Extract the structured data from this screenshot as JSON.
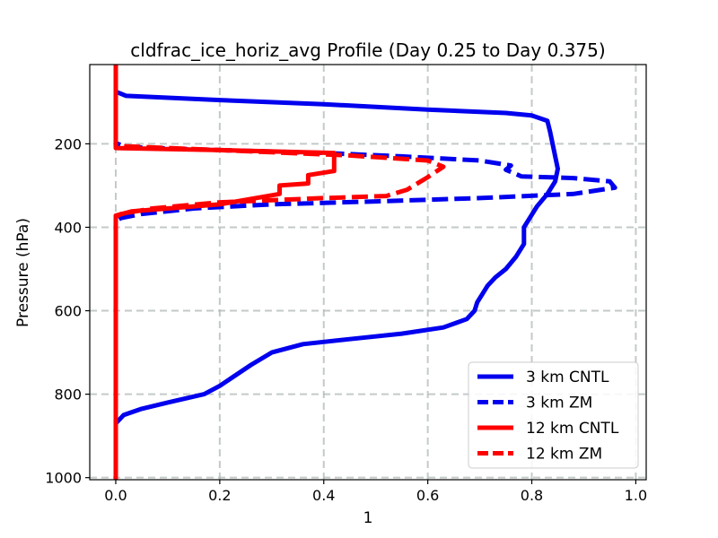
{
  "chart_data": {
    "type": "line",
    "title": "cldfrac_ice_horiz_avg Profile (Day 0.25 to Day 0.375)",
    "xlabel": "1",
    "ylabel": "Pressure (hPa)",
    "xlim": [
      -0.05,
      1.02
    ],
    "ylim": [
      1005,
      10
    ],
    "y_inverted": true,
    "grid": true,
    "legend_position": "lower-right",
    "xticks": [
      0.0,
      0.2,
      0.4,
      0.6,
      0.8,
      1.0
    ],
    "xtick_labels": [
      "0.0",
      "0.2",
      "0.4",
      "0.6",
      "0.8",
      "1.0"
    ],
    "yticks": [
      200,
      400,
      600,
      800,
      1000
    ],
    "ytick_labels": [
      "200",
      "400",
      "600",
      "800",
      "1000"
    ],
    "series": [
      {
        "name": "3 km CNTL",
        "color": "#0000ee",
        "style": "solid",
        "points": [
          [
            0.0,
            10
          ],
          [
            0.0,
            75
          ],
          [
            0.02,
            85
          ],
          [
            0.2,
            95
          ],
          [
            0.4,
            105
          ],
          [
            0.6,
            118
          ],
          [
            0.75,
            126
          ],
          [
            0.8,
            132
          ],
          [
            0.83,
            145
          ],
          [
            0.835,
            170
          ],
          [
            0.84,
            200
          ],
          [
            0.845,
            230
          ],
          [
            0.85,
            260
          ],
          [
            0.845,
            290
          ],
          [
            0.83,
            320
          ],
          [
            0.81,
            350
          ],
          [
            0.795,
            380
          ],
          [
            0.785,
            400
          ],
          [
            0.785,
            440
          ],
          [
            0.77,
            470
          ],
          [
            0.75,
            500
          ],
          [
            0.73,
            520
          ],
          [
            0.715,
            540
          ],
          [
            0.705,
            560
          ],
          [
            0.695,
            580
          ],
          [
            0.69,
            600
          ],
          [
            0.675,
            620
          ],
          [
            0.63,
            640
          ],
          [
            0.55,
            655
          ],
          [
            0.45,
            668
          ],
          [
            0.36,
            680
          ],
          [
            0.3,
            700
          ],
          [
            0.26,
            730
          ],
          [
            0.2,
            780
          ],
          [
            0.17,
            800
          ],
          [
            0.1,
            820
          ],
          [
            0.05,
            835
          ],
          [
            0.015,
            850
          ],
          [
            0.0,
            870
          ],
          [
            0.0,
            1005
          ]
        ]
      },
      {
        "name": "3 km ZM",
        "color": "#0000ee",
        "style": "dashed",
        "points": [
          [
            0.0,
            10
          ],
          [
            0.0,
            198
          ],
          [
            0.02,
            208
          ],
          [
            0.2,
            215
          ],
          [
            0.4,
            222
          ],
          [
            0.55,
            230
          ],
          [
            0.7,
            240
          ],
          [
            0.76,
            252
          ],
          [
            0.75,
            262
          ],
          [
            0.78,
            278
          ],
          [
            0.88,
            282
          ],
          [
            0.95,
            290
          ],
          [
            0.96,
            305
          ],
          [
            0.88,
            320
          ],
          [
            0.7,
            330
          ],
          [
            0.5,
            338
          ],
          [
            0.3,
            345
          ],
          [
            0.15,
            355
          ],
          [
            0.05,
            368
          ],
          [
            0.01,
            378
          ],
          [
            0.0,
            385
          ],
          [
            0.0,
            1005
          ]
        ]
      },
      {
        "name": "12 km CNTL",
        "color": "#ff0000",
        "style": "solid",
        "points": [
          [
            0.0,
            10
          ],
          [
            0.0,
            210
          ],
          [
            0.2,
            215
          ],
          [
            0.42,
            222
          ],
          [
            0.42,
            265
          ],
          [
            0.37,
            275
          ],
          [
            0.37,
            295
          ],
          [
            0.315,
            300
          ],
          [
            0.315,
            320
          ],
          [
            0.2,
            345
          ],
          [
            0.1,
            355
          ],
          [
            0.03,
            362
          ],
          [
            0.0,
            372
          ],
          [
            0.0,
            1005
          ]
        ]
      },
      {
        "name": "12 km ZM",
        "color": "#ff0000",
        "style": "dashed",
        "points": [
          [
            0.0,
            10
          ],
          [
            0.0,
            205
          ],
          [
            0.2,
            215
          ],
          [
            0.45,
            228
          ],
          [
            0.6,
            240
          ],
          [
            0.63,
            255
          ],
          [
            0.6,
            280
          ],
          [
            0.56,
            310
          ],
          [
            0.52,
            325
          ],
          [
            0.4,
            330
          ],
          [
            0.2,
            340
          ],
          [
            0.07,
            355
          ],
          [
            0.01,
            368
          ],
          [
            0.0,
            375
          ],
          [
            0.0,
            1005
          ]
        ]
      }
    ]
  }
}
